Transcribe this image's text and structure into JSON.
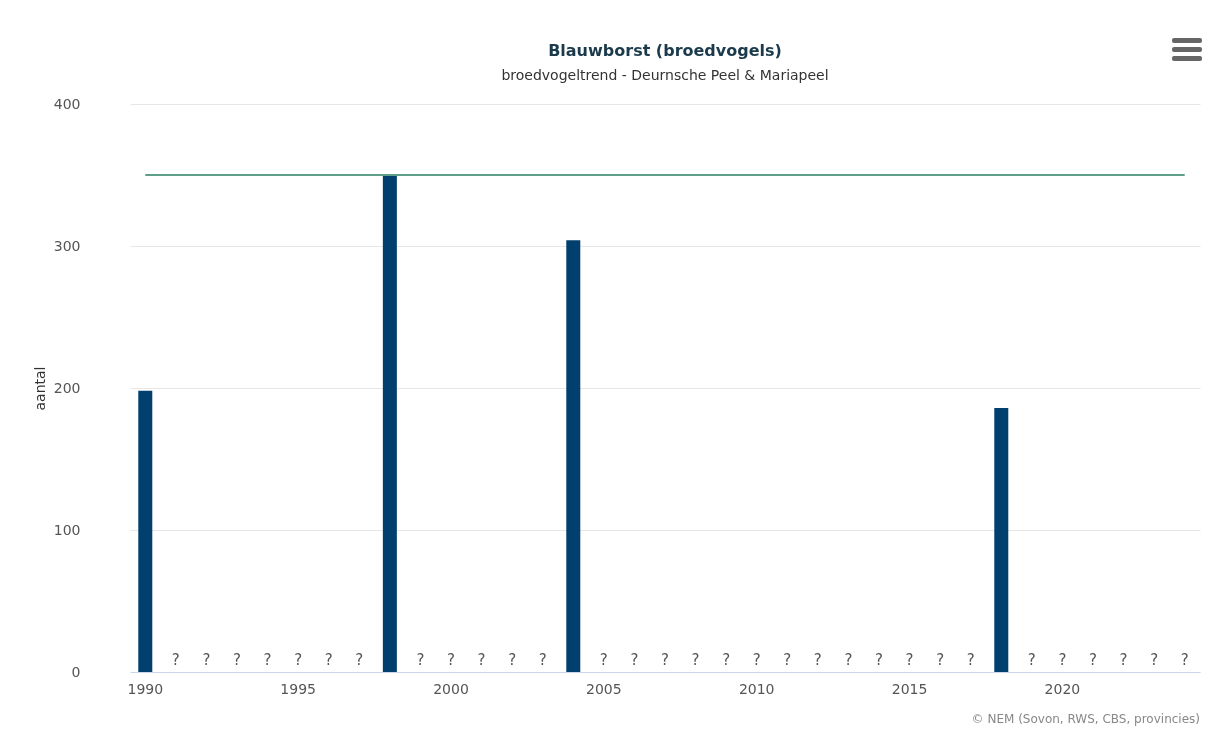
{
  "chart_data": {
    "type": "bar",
    "title": "Blauwborst (broedvogels)",
    "subtitle": "broedvogeltrend - Deurnsche Peel & Mariapeel",
    "ylabel": "aantal",
    "categories": [
      "1990",
      null,
      null,
      null,
      null,
      "1995",
      null,
      null,
      null,
      null,
      "2000",
      null,
      null,
      null,
      null,
      "2005",
      null,
      null,
      null,
      null,
      "2010",
      null,
      null,
      null,
      null,
      "2015",
      null,
      null,
      null,
      null,
      "2020",
      null,
      null,
      null,
      null
    ],
    "series": [
      {
        "color": "#003f6e",
        "values": [
          198,
          null,
          null,
          null,
          null,
          null,
          null,
          null,
          350,
          null,
          null,
          null,
          null,
          null,
          304,
          null,
          null,
          null,
          null,
          null,
          null,
          null,
          null,
          null,
          null,
          null,
          null,
          null,
          186,
          null,
          null,
          null,
          null,
          null,
          null
        ],
        "value_labels": [
          null,
          "?",
          "?",
          "?",
          "?",
          "?",
          "?",
          "?",
          null,
          "?",
          "?",
          "?",
          "?",
          "?",
          null,
          "?",
          "?",
          "?",
          "?",
          "?",
          "?",
          "?",
          "?",
          "?",
          "?",
          "?",
          "?",
          "?",
          null,
          "?",
          "?",
          "?",
          "?",
          "?",
          "?"
        ]
      },
      {
        "type": "line",
        "color": "#5f9e88",
        "values": [
          350,
          350,
          350,
          350,
          350,
          350,
          350,
          350,
          350,
          350,
          350,
          350,
          350,
          350,
          350,
          350,
          350,
          350,
          350,
          350,
          350,
          350,
          350,
          350,
          350,
          350,
          350,
          350,
          350,
          350,
          350,
          350,
          350,
          350,
          350
        ]
      }
    ],
    "ylim": [
      0,
      400
    ],
    "yticks": [
      0,
      100,
      200,
      300,
      400
    ],
    "grid": "y",
    "annotations": [
      "© NEM (Sovon, RWS, CBS, provincies)"
    ]
  }
}
